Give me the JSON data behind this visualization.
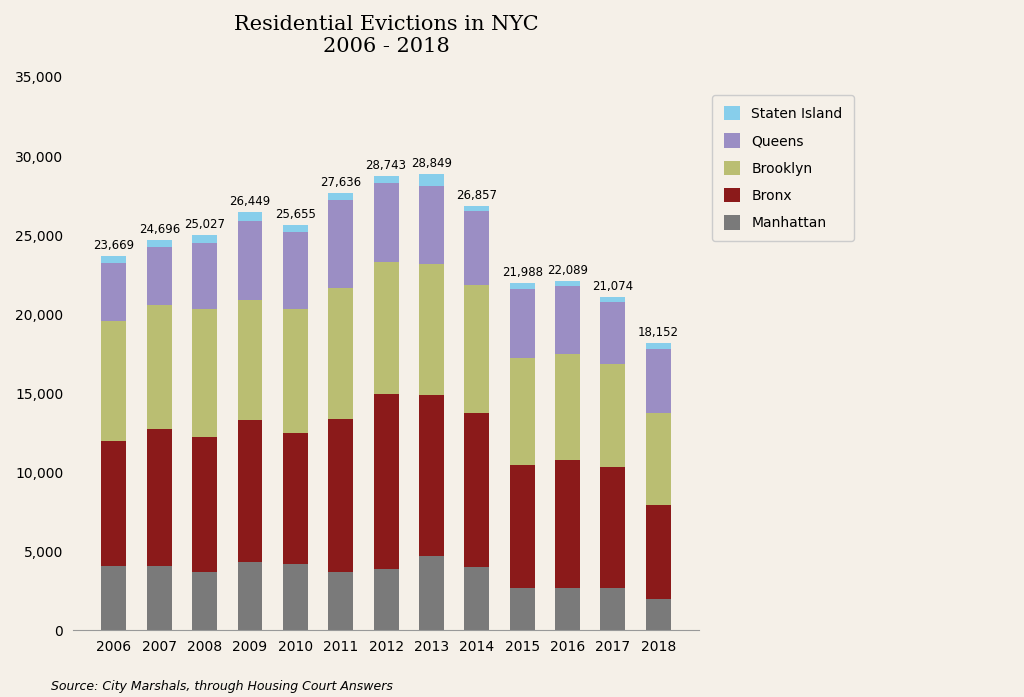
{
  "years": [
    2006,
    2007,
    2008,
    2009,
    2010,
    2011,
    2012,
    2013,
    2014,
    2015,
    2016,
    2017,
    2018
  ],
  "totals": [
    23669,
    24696,
    25027,
    26449,
    25655,
    27636,
    28743,
    28849,
    26857,
    21988,
    22089,
    21074,
    18152
  ],
  "manhattan": [
    4100,
    4050,
    3700,
    4350,
    4200,
    3700,
    3900,
    4700,
    4000,
    2700,
    2700,
    2650,
    2000
  ],
  "bronx": [
    7900,
    8700,
    8550,
    8950,
    8300,
    9700,
    11050,
    10200,
    9750,
    7750,
    8100,
    7700,
    5950
  ],
  "brooklyn": [
    7550,
    7800,
    8100,
    7600,
    7850,
    8250,
    8350,
    8300,
    8100,
    6750,
    6650,
    6500,
    5800
  ],
  "queens": [
    3700,
    3700,
    4150,
    5000,
    4850,
    5550,
    5000,
    4900,
    4650,
    4400,
    4350,
    3900,
    4050
  ],
  "staten_island": [
    419,
    446,
    527,
    549,
    455,
    436,
    443,
    749,
    357,
    388,
    289,
    324,
    352
  ],
  "colors": {
    "manhattan": "#7A7A7A",
    "bronx": "#8B1A1A",
    "brooklyn": "#BABE72",
    "queens": "#9B8EC4",
    "staten_island": "#87CEEB"
  },
  "title_line1": "Residential Evictions in NYC",
  "title_line2": "2006 - 2018",
  "source": "Source: City Marshals, through Housing Court Answers",
  "background_color": "#F5F0E8",
  "ylim": [
    0,
    35000
  ],
  "yticks": [
    0,
    5000,
    10000,
    15000,
    20000,
    25000,
    30000,
    35000
  ],
  "legend_labels": [
    "Staten Island",
    "Queens",
    "Brooklyn",
    "Bronx",
    "Manhattan"
  ]
}
